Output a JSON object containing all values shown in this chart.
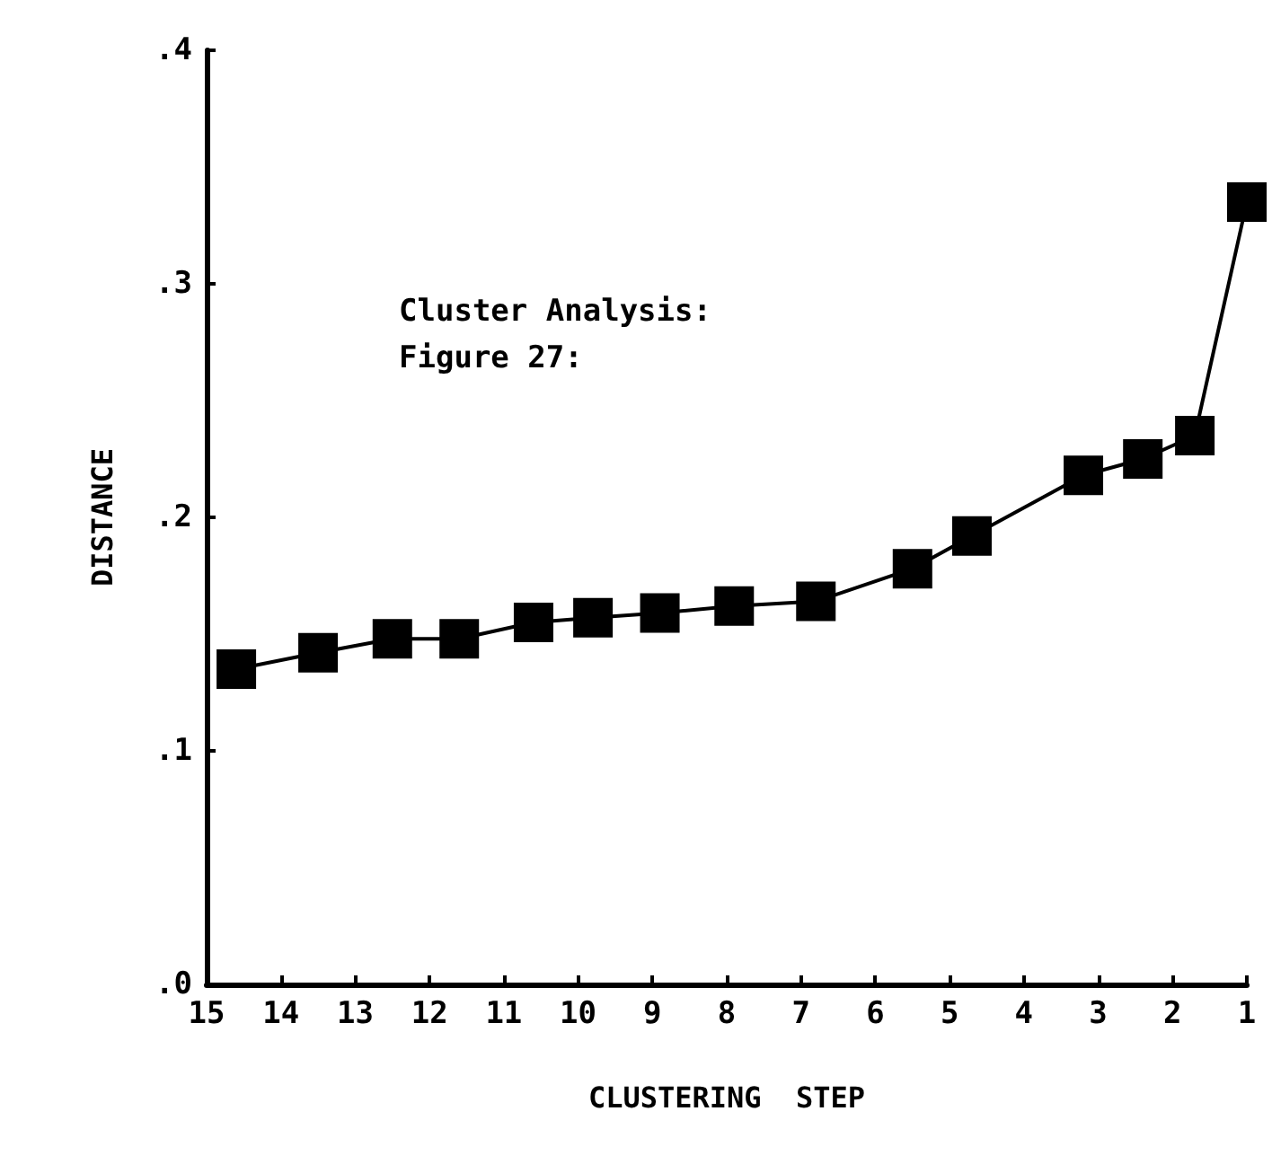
{
  "chart_data": {
    "type": "line",
    "xlabel": "CLUSTERING  STEP",
    "ylabel": "DISTANCE",
    "annotations": [
      "Cluster Analysis:",
      "Figure 27:"
    ],
    "x": [
      14.6,
      13.5,
      12.5,
      11.6,
      10.6,
      9.8,
      8.9,
      7.9,
      6.8,
      5.5,
      4.7,
      3.2,
      2.4,
      1.7,
      1
    ],
    "series": [
      {
        "color": "#000000",
        "values": [
          0.135,
          0.142,
          0.148,
          0.148,
          0.155,
          0.157,
          0.159,
          0.162,
          0.164,
          0.178,
          0.192,
          0.218,
          0.225,
          0.235,
          0.335
        ]
      }
    ],
    "xlim": [
      15,
      1
    ],
    "xticks": [
      15,
      14,
      13,
      12,
      11,
      10,
      9,
      8,
      7,
      6,
      5,
      4,
      3,
      2,
      1
    ],
    "ylim": [
      0,
      0.4
    ],
    "yticks": [
      {
        "value": 0,
        "label": ".0"
      },
      {
        "value": 0.1,
        "label": ".1"
      },
      {
        "value": 0.2,
        "label": ".2"
      },
      {
        "value": 0.3,
        "label": ".3"
      },
      {
        "value": 0.4,
        "label": ".4"
      }
    ],
    "grid": false,
    "marker": "square",
    "line_style": "solid"
  }
}
